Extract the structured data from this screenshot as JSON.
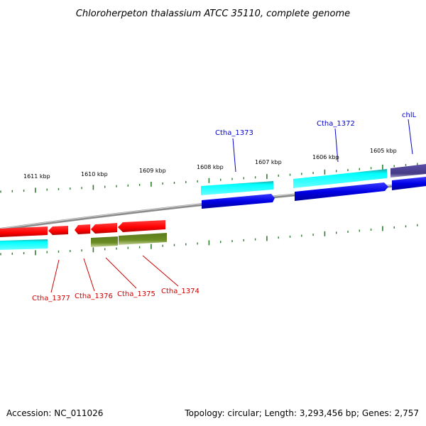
{
  "title": "Chloroherpeton thalassium ATCC 35110, complete genome",
  "footer": {
    "accession": "Accession: NC_011026",
    "topology": "Topology: circular; Length: 3,293,456 bp; Genes: 2,757"
  },
  "ruler": {
    "labels": [
      "1611 kbp",
      "1610 kbp",
      "1609 kbp",
      "1608 kbp",
      "1607 kbp",
      "1606 kbp",
      "1605 kbp"
    ]
  },
  "gene_labels": {
    "top": [
      "Ctha_1373",
      "Ctha_1372",
      "chlL"
    ],
    "bottom": [
      "Ctha_1377",
      "Ctha_1376",
      "Ctha_1375",
      "Ctha_1374"
    ]
  },
  "colors": {
    "blue_gene": "#0000e6",
    "cyan_gene": "#00ffff",
    "teal_gene": "#2ab5b5",
    "red_gene": "#ff0000",
    "olive_gene": "#6b8e23",
    "purple_gene": "#4a3f8f",
    "tick": "#2e7d2e",
    "backbone": "#888888",
    "label_blue": "#0000cc",
    "label_red": "#cc0000"
  }
}
